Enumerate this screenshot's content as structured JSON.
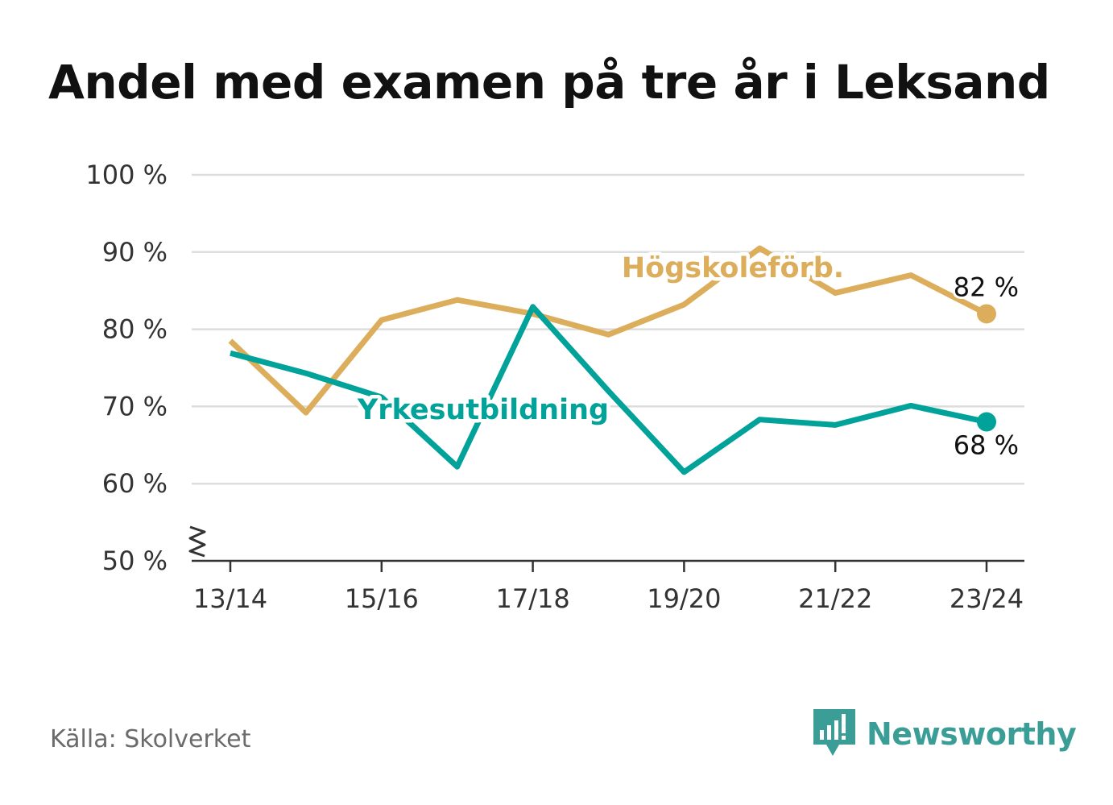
{
  "title": "Andel med examen på tre år i Leksand",
  "source": "Källa: Skolverket",
  "brand": {
    "name": "Newsworthy",
    "icon": "newsworthy-logo-icon",
    "color": "#3a9e97"
  },
  "chart_data": {
    "type": "line",
    "title": "Andel med examen på tre år i Leksand",
    "x": [
      "13/14",
      "14/15",
      "15/16",
      "16/17",
      "17/18",
      "18/19",
      "19/20",
      "20/21",
      "21/22",
      "22/23",
      "23/24"
    ],
    "x_tick_labels": [
      "13/14",
      "15/16",
      "17/18",
      "19/20",
      "21/22",
      "23/24"
    ],
    "y_tick_labels": [
      "50 %",
      "60 %",
      "70 %",
      "80 %",
      "90 %",
      "100 %"
    ],
    "ylim": [
      50,
      100
    ],
    "y_axis_break": true,
    "grid": true,
    "series": [
      {
        "name": "Högskoleförb.",
        "color": "#dcae5c",
        "values": [
          78.5,
          69.2,
          81.2,
          83.8,
          82.0,
          79.3,
          83.2,
          90.5,
          84.7,
          87.0,
          82.0
        ],
        "end_label": "82 %"
      },
      {
        "name": "Yrkesutbildning",
        "color": "#00a29a",
        "values": [
          76.9,
          74.3,
          71.2,
          62.2,
          82.9,
          72.0,
          61.5,
          68.3,
          67.6,
          70.1,
          68.0
        ],
        "end_label": "68 %"
      }
    ]
  }
}
